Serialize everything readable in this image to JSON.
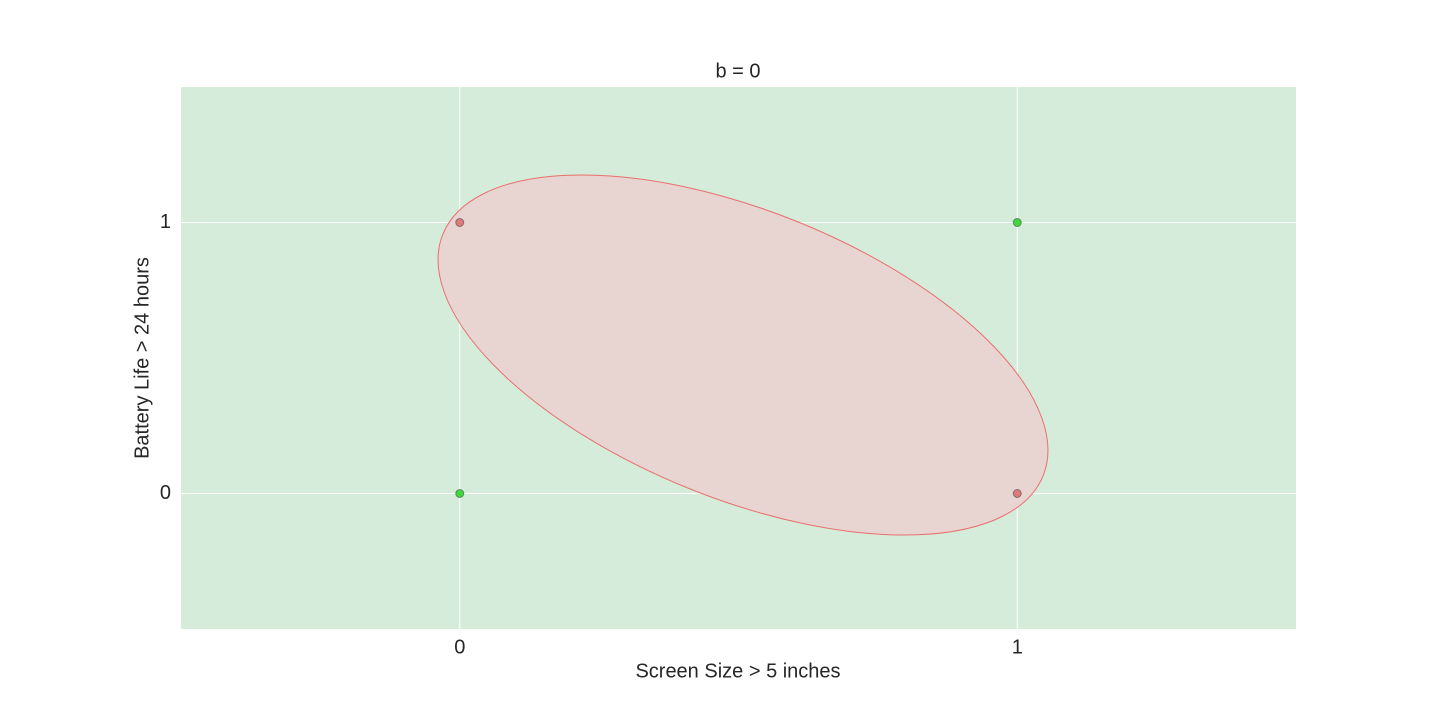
{
  "chart_data": {
    "type": "scatter",
    "title": "b = 0",
    "x_label": "Screen Size > 5 inches",
    "y_label": "Battery Life > 24 hours",
    "x": [
      0,
      1,
      0,
      1
    ],
    "values": [
      0,
      1,
      1,
      0
    ],
    "colors": [
      "#3fd83f",
      "#3fd83f",
      "#e07a7a",
      "#e07a7a"
    ],
    "xlim": [
      -0.5,
      1.5
    ],
    "ylim": [
      -0.5,
      1.5
    ],
    "xticks": [
      0,
      1
    ],
    "yticks": [
      0,
      1
    ],
    "grid": true
  }
}
